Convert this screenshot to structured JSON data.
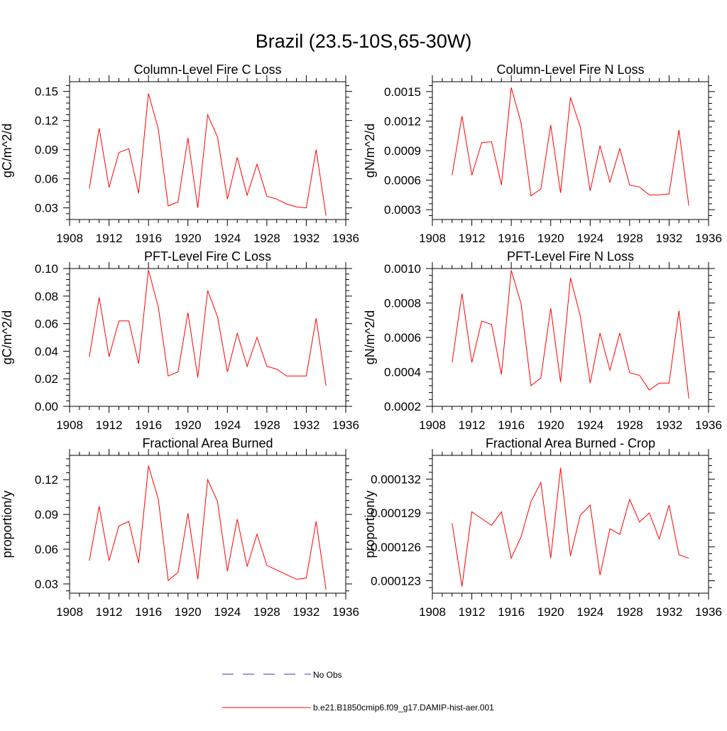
{
  "page_title": "Brazil (23.5-10S,65-30W)",
  "legend": {
    "obs_label": "No Obs",
    "model_label": "b.e21.B1850cmip6.f09_g17.DAMIP-hist-aer.001",
    "obs_color": "#3a3ad0",
    "model_color": "#ff0000"
  },
  "chart_data": [
    {
      "type": "line",
      "title": "Column-Level Fire C Loss",
      "ylabel": "gC/m^2/d",
      "xlim": [
        1908,
        1936
      ],
      "x_ticks": [
        1908,
        1912,
        1916,
        1920,
        1924,
        1928,
        1932,
        1936
      ],
      "ylim": [
        0.018,
        0.16
      ],
      "y_ticks": [
        0.03,
        0.06,
        0.09,
        0.12,
        0.15
      ],
      "y_tick_labels": [
        "0.03",
        "0.06",
        "0.09",
        "0.12",
        "0.15"
      ],
      "x": [
        1910,
        1911,
        1912,
        1913,
        1914,
        1915,
        1916,
        1917,
        1918,
        1919,
        1920,
        1921,
        1922,
        1923,
        1924,
        1925,
        1926,
        1927,
        1928,
        1929,
        1930,
        1931,
        1932,
        1933,
        1934
      ],
      "series": [
        {
          "values": [
            0.05,
            0.112,
            0.051,
            0.087,
            0.091,
            0.045,
            0.148,
            0.111,
            0.032,
            0.036,
            0.102,
            0.03,
            0.126,
            0.103,
            0.039,
            0.082,
            0.043,
            0.075,
            0.042,
            0.039,
            0.034,
            0.031,
            0.03,
            0.09,
            0.022
          ]
        }
      ]
    },
    {
      "type": "line",
      "title": "Column-Level Fire N Loss",
      "ylabel": "gN/m^2/d",
      "xlim": [
        1908,
        1936
      ],
      "x_ticks": [
        1908,
        1912,
        1916,
        1920,
        1924,
        1928,
        1932,
        1936
      ],
      "ylim": [
        0.0002,
        0.0016
      ],
      "y_ticks": [
        0.0003,
        0.0006,
        0.0009,
        0.0012,
        0.0015
      ],
      "y_tick_labels": [
        "0.0003",
        "0.0006",
        "0.0009",
        "0.0012",
        "0.0015"
      ],
      "x": [
        1910,
        1911,
        1912,
        1913,
        1914,
        1915,
        1916,
        1917,
        1918,
        1919,
        1920,
        1921,
        1922,
        1923,
        1924,
        1925,
        1926,
        1927,
        1928,
        1929,
        1930,
        1931,
        1932,
        1933,
        1934
      ],
      "series": [
        {
          "values": [
            0.00065,
            0.00125,
            0.00065,
            0.00098,
            0.00099,
            0.00055,
            0.00154,
            0.00118,
            0.00044,
            0.00051,
            0.00116,
            0.00047,
            0.00144,
            0.00114,
            0.00049,
            0.00095,
            0.00058,
            0.00092,
            0.00055,
            0.00053,
            0.00045,
            0.00045,
            0.00046,
            0.00111,
            0.00034
          ]
        }
      ]
    },
    {
      "type": "line",
      "title": "PFT-Level Fire C Loss",
      "ylabel": "gC/m^2/d",
      "xlim": [
        1908,
        1936
      ],
      "x_ticks": [
        1908,
        1912,
        1916,
        1920,
        1924,
        1928,
        1932,
        1936
      ],
      "ylim": [
        0,
        0.1
      ],
      "y_ticks": [
        0,
        0.02,
        0.04,
        0.06,
        0.08,
        0.1
      ],
      "y_tick_labels": [
        "0.00",
        "0.02",
        "0.04",
        "0.06",
        "0.08",
        "0.10"
      ],
      "x": [
        1910,
        1911,
        1912,
        1913,
        1914,
        1915,
        1916,
        1917,
        1918,
        1919,
        1920,
        1921,
        1922,
        1923,
        1924,
        1925,
        1926,
        1927,
        1928,
        1929,
        1930,
        1931,
        1932,
        1933,
        1934
      ],
      "series": [
        {
          "values": [
            0.036,
            0.079,
            0.036,
            0.062,
            0.062,
            0.031,
            0.099,
            0.072,
            0.022,
            0.025,
            0.068,
            0.021,
            0.084,
            0.065,
            0.025,
            0.053,
            0.029,
            0.05,
            0.029,
            0.027,
            0.022,
            0.022,
            0.022,
            0.064,
            0.015
          ]
        }
      ]
    },
    {
      "type": "line",
      "title": "PFT-Level Fire N Loss",
      "ylabel": "gN/m^2/d",
      "xlim": [
        1908,
        1936
      ],
      "x_ticks": [
        1908,
        1912,
        1916,
        1920,
        1924,
        1928,
        1932,
        1936
      ],
      "ylim": [
        0.0002,
        0.001
      ],
      "y_ticks": [
        0.0002,
        0.0004,
        0.0006,
        0.0008,
        0.001
      ],
      "y_tick_labels": [
        "0.0002",
        "0.0004",
        "0.0006",
        "0.0008",
        "0.0010"
      ],
      "x": [
        1910,
        1911,
        1912,
        1913,
        1914,
        1915,
        1916,
        1917,
        1918,
        1919,
        1920,
        1921,
        1922,
        1923,
        1924,
        1925,
        1926,
        1927,
        1928,
        1929,
        1930,
        1931,
        1932,
        1933,
        1934
      ],
      "series": [
        {
          "values": [
            0.000455,
            0.000855,
            0.000455,
            0.000695,
            0.000675,
            0.000385,
            0.00099,
            0.000795,
            0.00032,
            0.000365,
            0.00077,
            0.00034,
            0.000945,
            0.000725,
            0.000335,
            0.000625,
            0.00041,
            0.000625,
            0.000395,
            0.00038,
            0.000295,
            0.000335,
            0.000335,
            0.000755,
            0.000245
          ]
        }
      ]
    },
    {
      "type": "line",
      "title": "Fractional Area Burned",
      "ylabel": "proportion/y",
      "xlim": [
        1908,
        1936
      ],
      "x_ticks": [
        1908,
        1912,
        1916,
        1920,
        1924,
        1928,
        1932,
        1936
      ],
      "ylim": [
        0.022,
        0.141
      ],
      "y_ticks": [
        0.03,
        0.06,
        0.09,
        0.12
      ],
      "y_tick_labels": [
        "0.03",
        "0.06",
        "0.09",
        "0.12"
      ],
      "x": [
        1910,
        1911,
        1912,
        1913,
        1914,
        1915,
        1916,
        1917,
        1918,
        1919,
        1920,
        1921,
        1922,
        1923,
        1924,
        1925,
        1926,
        1927,
        1928,
        1929,
        1930,
        1931,
        1932,
        1933,
        1934
      ],
      "series": [
        {
          "values": [
            0.05,
            0.097,
            0.05,
            0.08,
            0.084,
            0.048,
            0.132,
            0.103,
            0.033,
            0.04,
            0.091,
            0.034,
            0.12,
            0.101,
            0.041,
            0.086,
            0.045,
            0.073,
            0.046,
            0.042,
            0.038,
            0.034,
            0.035,
            0.084,
            0.025
          ]
        }
      ]
    },
    {
      "type": "line",
      "title": "Fractional Area Burned - Crop",
      "ylabel": "proportion/y",
      "xlim": [
        1908,
        1936
      ],
      "x_ticks": [
        1908,
        1912,
        1916,
        1920,
        1924,
        1928,
        1932,
        1936
      ],
      "ylim": [
        0.0001219,
        0.0001341
      ],
      "y_ticks": [
        0.000123,
        0.000126,
        0.000129,
        0.000132
      ],
      "y_tick_labels": [
        "0.000123",
        "0.000126",
        "0.000129",
        "0.000132"
      ],
      "x": [
        1910,
        1911,
        1912,
        1913,
        1914,
        1915,
        1916,
        1917,
        1918,
        1919,
        1920,
        1921,
        1922,
        1923,
        1924,
        1925,
        1926,
        1927,
        1928,
        1929,
        1930,
        1931,
        1932,
        1933,
        1934
      ],
      "series": [
        {
          "values": [
            0.0001281,
            0.0001225,
            0.0001291,
            0.0001285,
            0.0001279,
            0.0001291,
            0.000125,
            0.0001269,
            0.00013,
            0.0001317,
            0.000125,
            0.000133,
            0.0001252,
            0.0001288,
            0.0001297,
            0.0001235,
            0.0001276,
            0.0001271,
            0.0001302,
            0.0001282,
            0.000129,
            0.0001267,
            0.0001297,
            0.0001253,
            0.000125
          ]
        }
      ]
    }
  ]
}
